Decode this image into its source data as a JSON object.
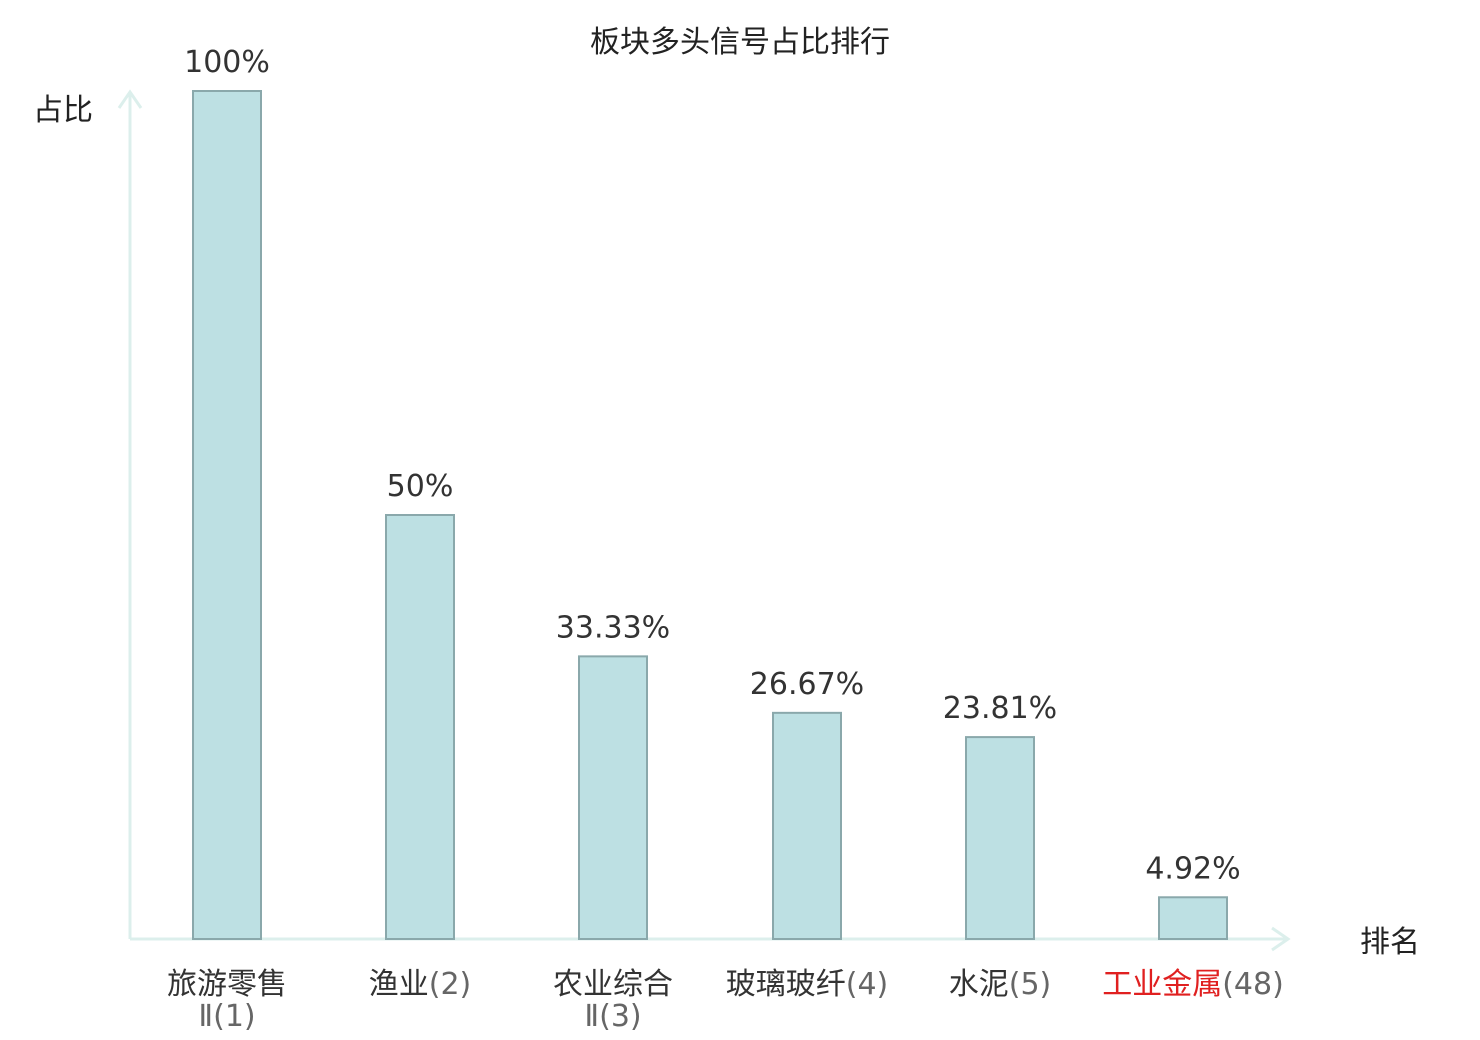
{
  "chart_data": {
    "type": "bar",
    "title": "板块多头信号占比排行",
    "ylabel": "占比",
    "xlabel": "排名",
    "ylim": [
      0,
      100
    ],
    "grid": false,
    "categories": [
      {
        "name": "旅游零售",
        "name_cont": "Ⅱ",
        "rank": "(1)",
        "highlight": false
      },
      {
        "name": "渔业",
        "name_cont": "",
        "rank": "(2)",
        "highlight": false
      },
      {
        "name": "农业综合",
        "name_cont": "Ⅱ",
        "rank": "(3)",
        "highlight": false
      },
      {
        "name": "玻璃玻纤",
        "name_cont": "",
        "rank": "(4)",
        "highlight": false
      },
      {
        "name": "水泥",
        "name_cont": "",
        "rank": "(5)",
        "highlight": false
      },
      {
        "name": "工业金属",
        "name_cont": "",
        "rank": "(48)",
        "highlight": true
      }
    ],
    "values": [
      100,
      50,
      33.33,
      26.67,
      23.81,
      4.92
    ],
    "value_labels": [
      "100%",
      "50%",
      "33.33%",
      "26.67%",
      "23.81%",
      "4.92%"
    ],
    "colors": {
      "bar_fill": "#bde0e3",
      "bar_stroke": "#8aa8ab",
      "axis": "#dcefec",
      "highlight_text": "#e02020"
    }
  }
}
